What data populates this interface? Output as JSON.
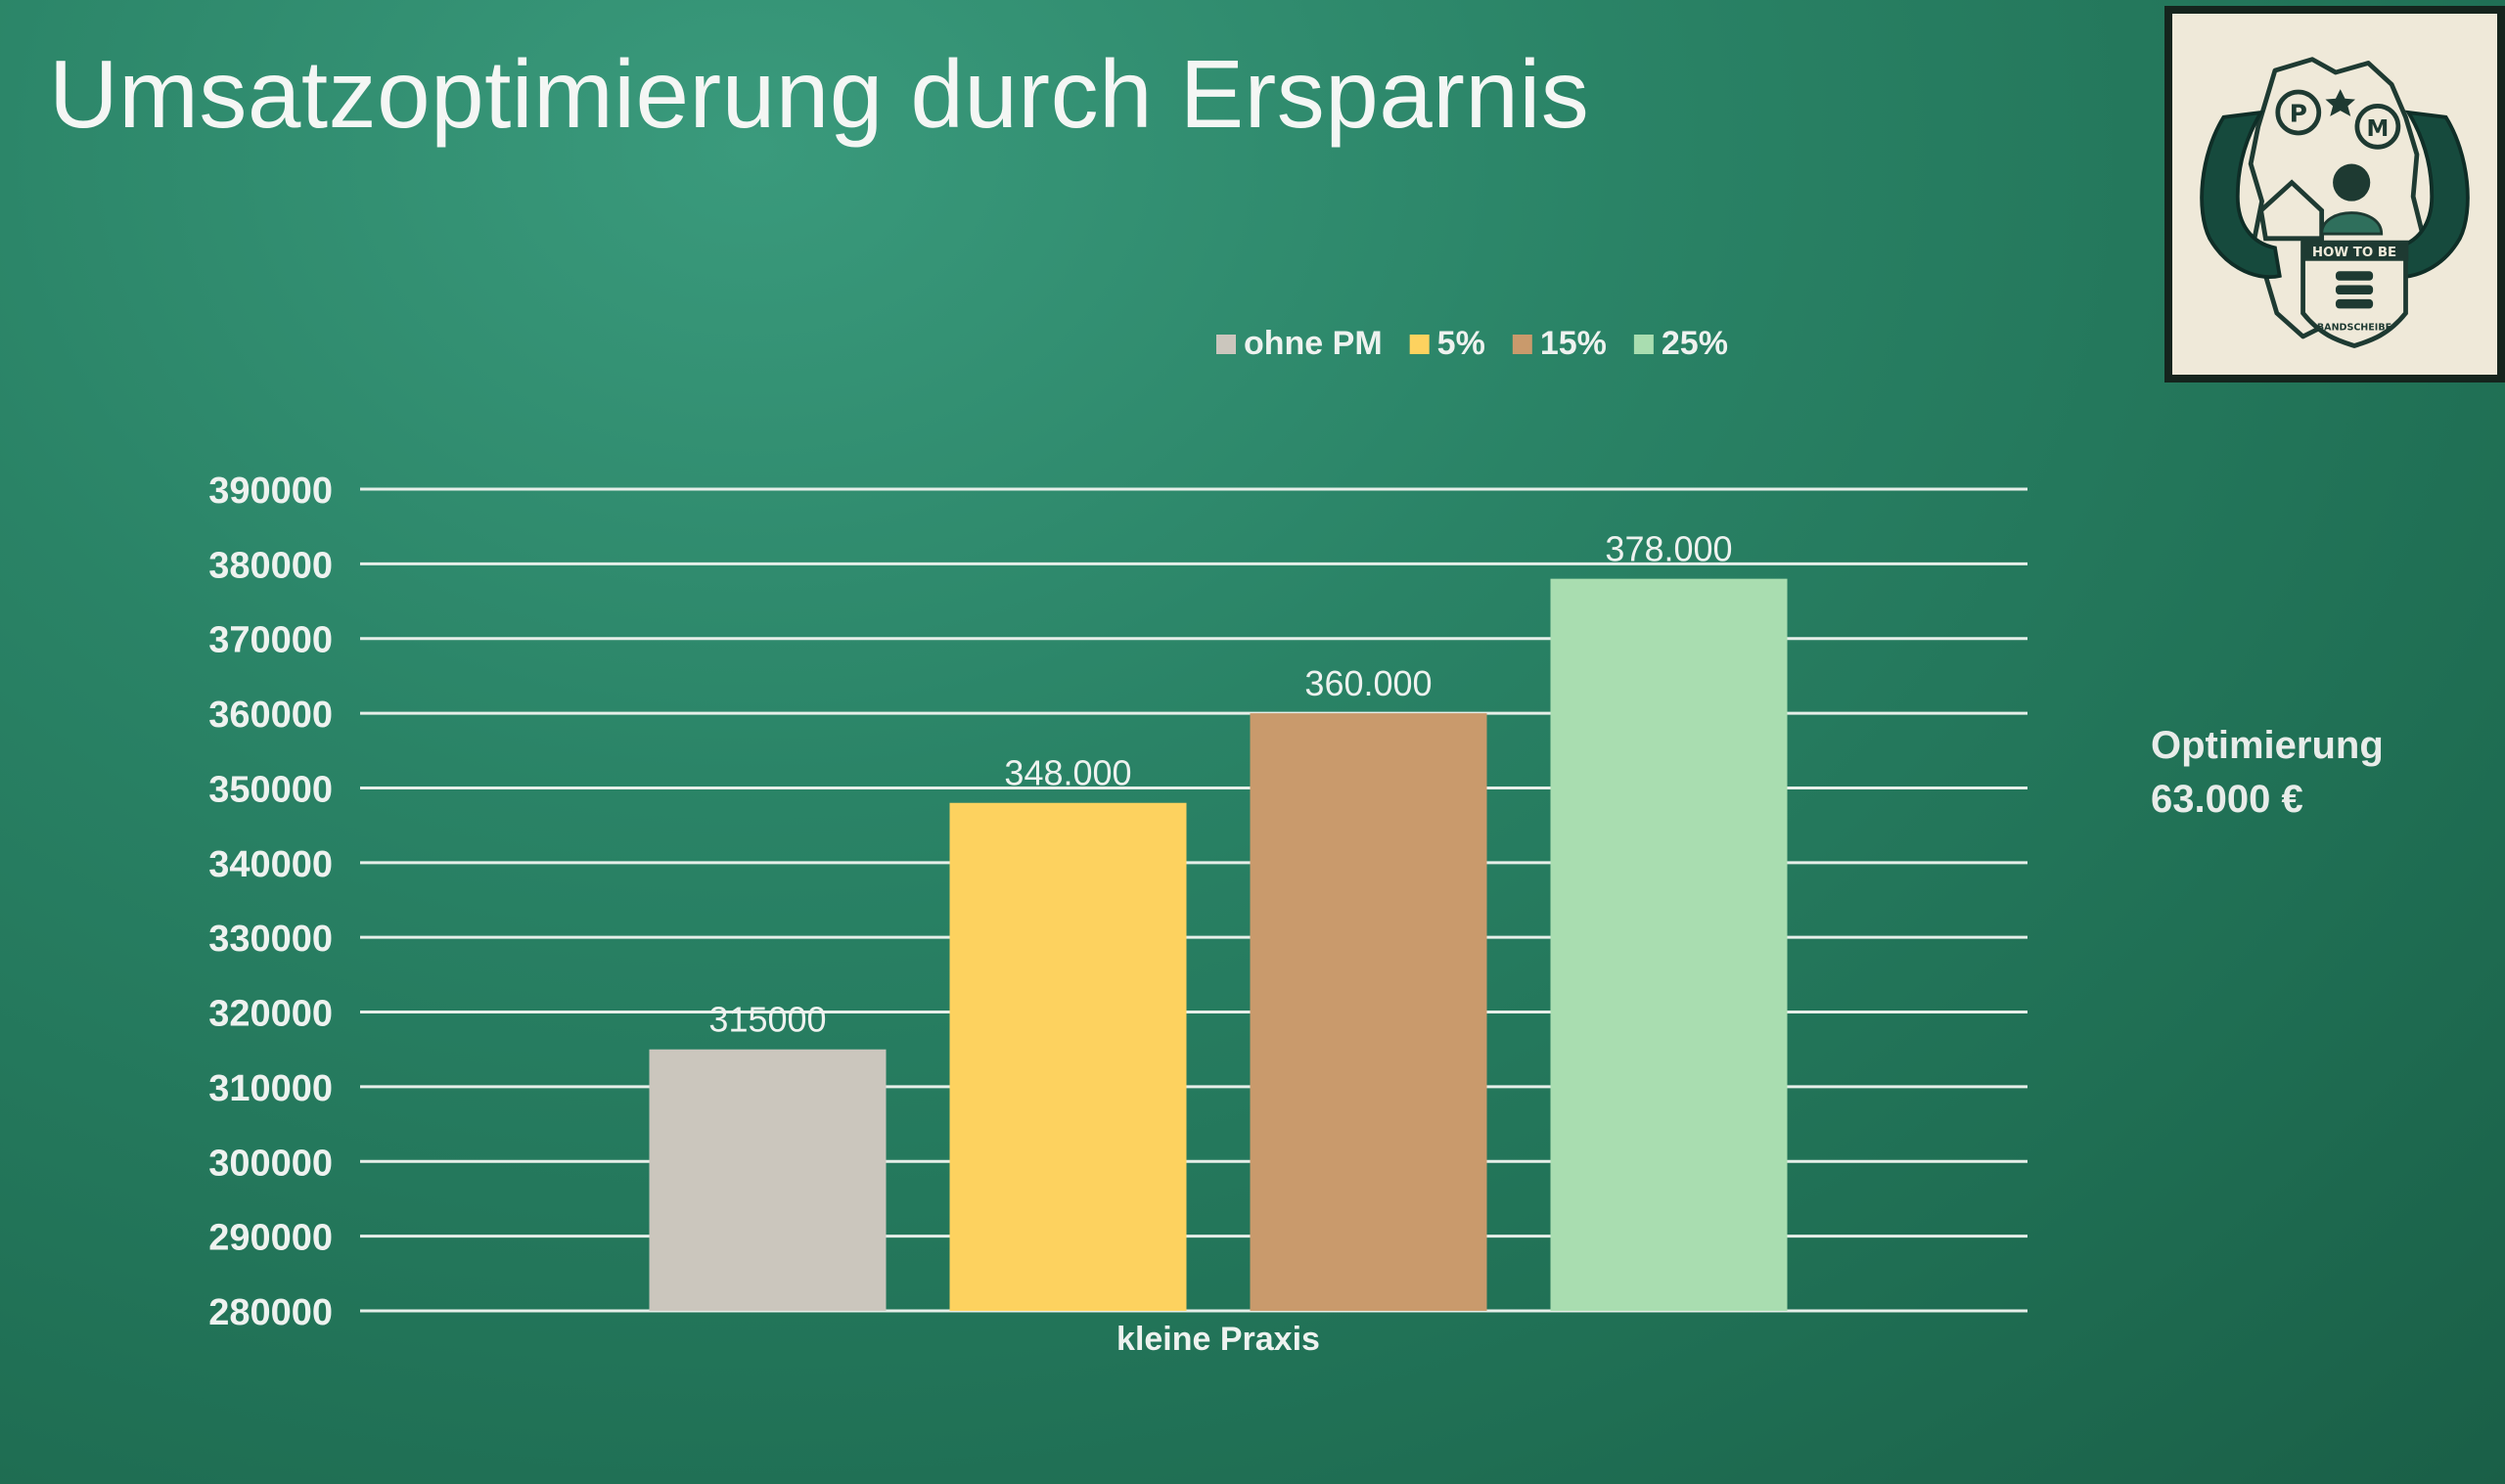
{
  "slide": {
    "title": "Umsatzoptimierung durch Ersparnis"
  },
  "logo": {
    "icon": "practice-management-logo",
    "ribbon_top": "HOW TO BE",
    "ribbon_bottom": "BANDSCHEIBE"
  },
  "annotation": {
    "label": "Optimierung",
    "value": "63.000 €"
  },
  "colors": {
    "ohne_pm": "#cbc6bd",
    "p5": "#fdd25f",
    "p15": "#c99a6c",
    "p25": "#a9ddb0",
    "gridline": "#e6efe9",
    "text": "#eef2ef"
  },
  "chart_data": {
    "type": "bar",
    "categories": [
      "kleine Praxis"
    ],
    "series": [
      {
        "name": "ohne PM",
        "values": [
          315000
        ],
        "label": "315000",
        "color": "#cbc6bd"
      },
      {
        "name": "5%",
        "values": [
          348000
        ],
        "label": "348.000",
        "color": "#fdd25f"
      },
      {
        "name": "15%",
        "values": [
          360000
        ],
        "label": "360.000",
        "color": "#c99a6c"
      },
      {
        "name": "25%",
        "values": [
          378000
        ],
        "label": "378.000",
        "color": "#a9ddb0"
      }
    ],
    "yticks": [
      "390000",
      "380000",
      "370000",
      "360000",
      "350000",
      "340000",
      "330000",
      "320000",
      "310000",
      "300000",
      "290000",
      "280000"
    ],
    "ylim": [
      280000,
      390000
    ],
    "grid": true,
    "legend_position": "top"
  }
}
